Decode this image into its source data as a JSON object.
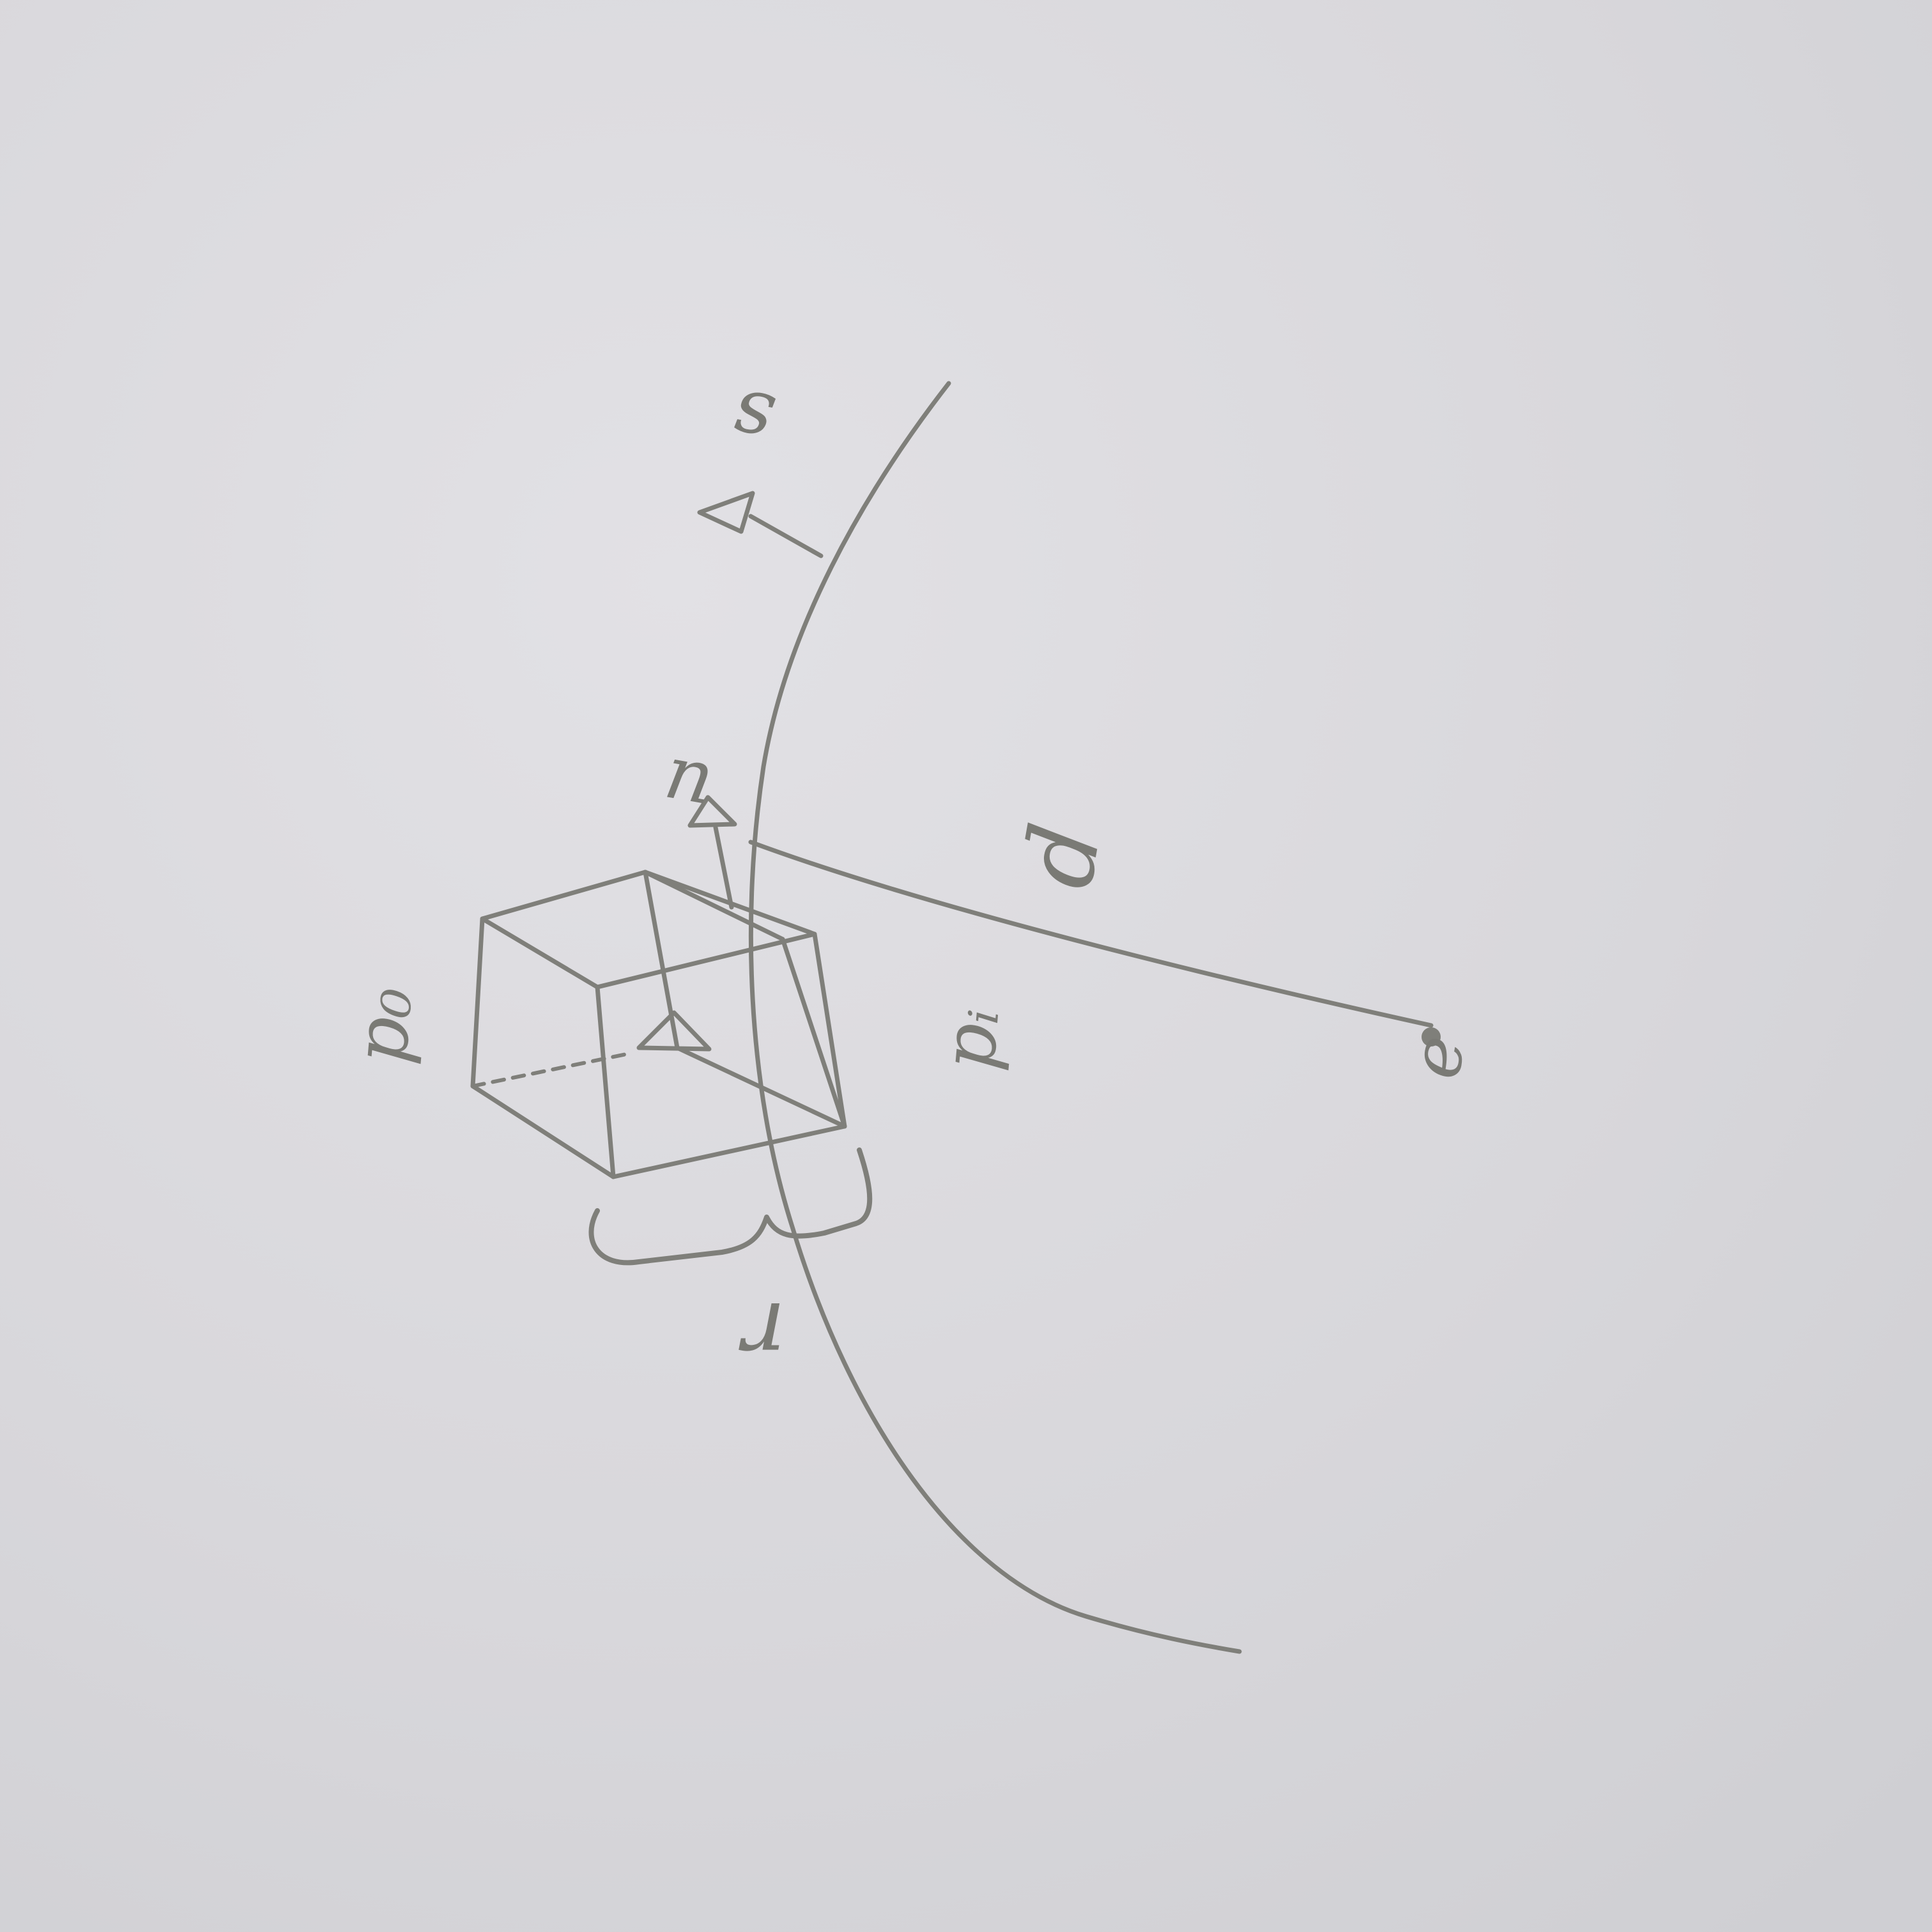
{
  "page": {
    "paper_color": "#d9d8dc",
    "ink_color": "#7f7f7a"
  },
  "labels": {
    "surface_normal": "s",
    "camera_up": "u",
    "box_origin": "p₀",
    "box_intersection": "pᵢ",
    "distance": "d",
    "eye_point": "e",
    "box_size": "r"
  }
}
